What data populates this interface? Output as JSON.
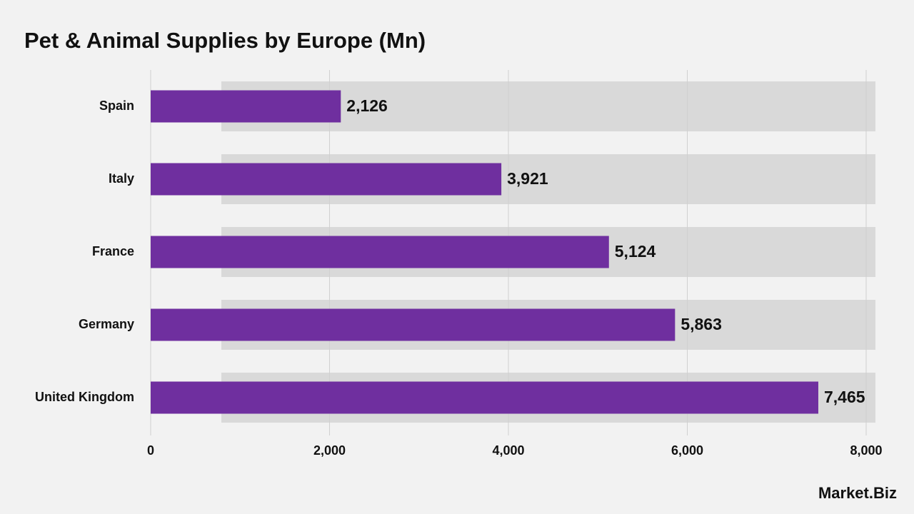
{
  "chart_data": {
    "type": "hbar",
    "title": "Pet & Animal Supplies by Europe (Mn)",
    "categories": [
      "Spain",
      "Italy",
      "France",
      "Germany",
      "United Kingdom"
    ],
    "values": [
      2126,
      3921,
      5124,
      5863,
      7465
    ],
    "value_labels": [
      "2,126",
      "3,921",
      "5,124",
      "5,863",
      "7,465"
    ],
    "color": "#6f2f9f",
    "xlim": [
      0,
      8000
    ],
    "xticks": [
      0,
      {
        "value": 2000,
        "label": "2,000"
      },
      {
        "value": 4000,
        "label": "4,000"
      },
      {
        "value": 6000,
        "label": "6,000"
      },
      {
        "value": 8000,
        "label": "8,000"
      }
    ],
    "grid": true,
    "brand": "Market.Biz"
  }
}
